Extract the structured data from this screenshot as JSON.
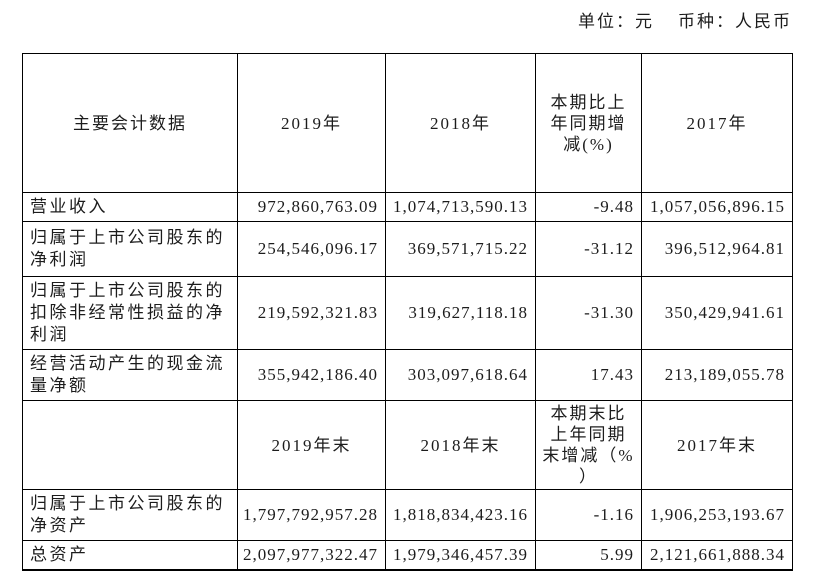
{
  "page": {
    "unit_label": "单位：元",
    "currency_label": "币种：人民币"
  },
  "colors": {
    "text": "#1c1c1c",
    "border": "#000000",
    "background": "#ffffff"
  },
  "table": {
    "header_period": [
      "主要会计数据",
      "2019年",
      "2018年",
      "本期比上年同期增减(%)",
      "2017年"
    ],
    "rows_period": [
      [
        "营业收入",
        "972,860,763.09",
        "1,074,713,590.13",
        "-9.48",
        "1,057,056,896.15"
      ],
      [
        "归属于上市公司股东的净利润",
        "254,546,096.17",
        "369,571,715.22",
        "-31.12",
        "396,512,964.81"
      ],
      [
        "归属于上市公司股东的扣除非经常性损益的净利润",
        "219,592,321.83",
        "319,627,118.18",
        "-31.30",
        "350,429,941.61"
      ],
      [
        "经营活动产生的现金流量净额",
        "355,942,186.40",
        "303,097,618.64",
        "17.43",
        "213,189,055.78"
      ]
    ],
    "header_end": [
      "",
      "2019年末",
      "2018年末",
      "本期末比上年同期末增减（%）",
      "2017年末"
    ],
    "rows_end": [
      [
        "归属于上市公司股东的净资产",
        "1,797,792,957.28",
        "1,818,834,423.16",
        "-1.16",
        "1,906,253,193.67"
      ],
      [
        "总资产",
        "2,097,977,322.47",
        "1,979,346,457.39",
        "5.99",
        "2,121,661,888.34"
      ]
    ]
  }
}
